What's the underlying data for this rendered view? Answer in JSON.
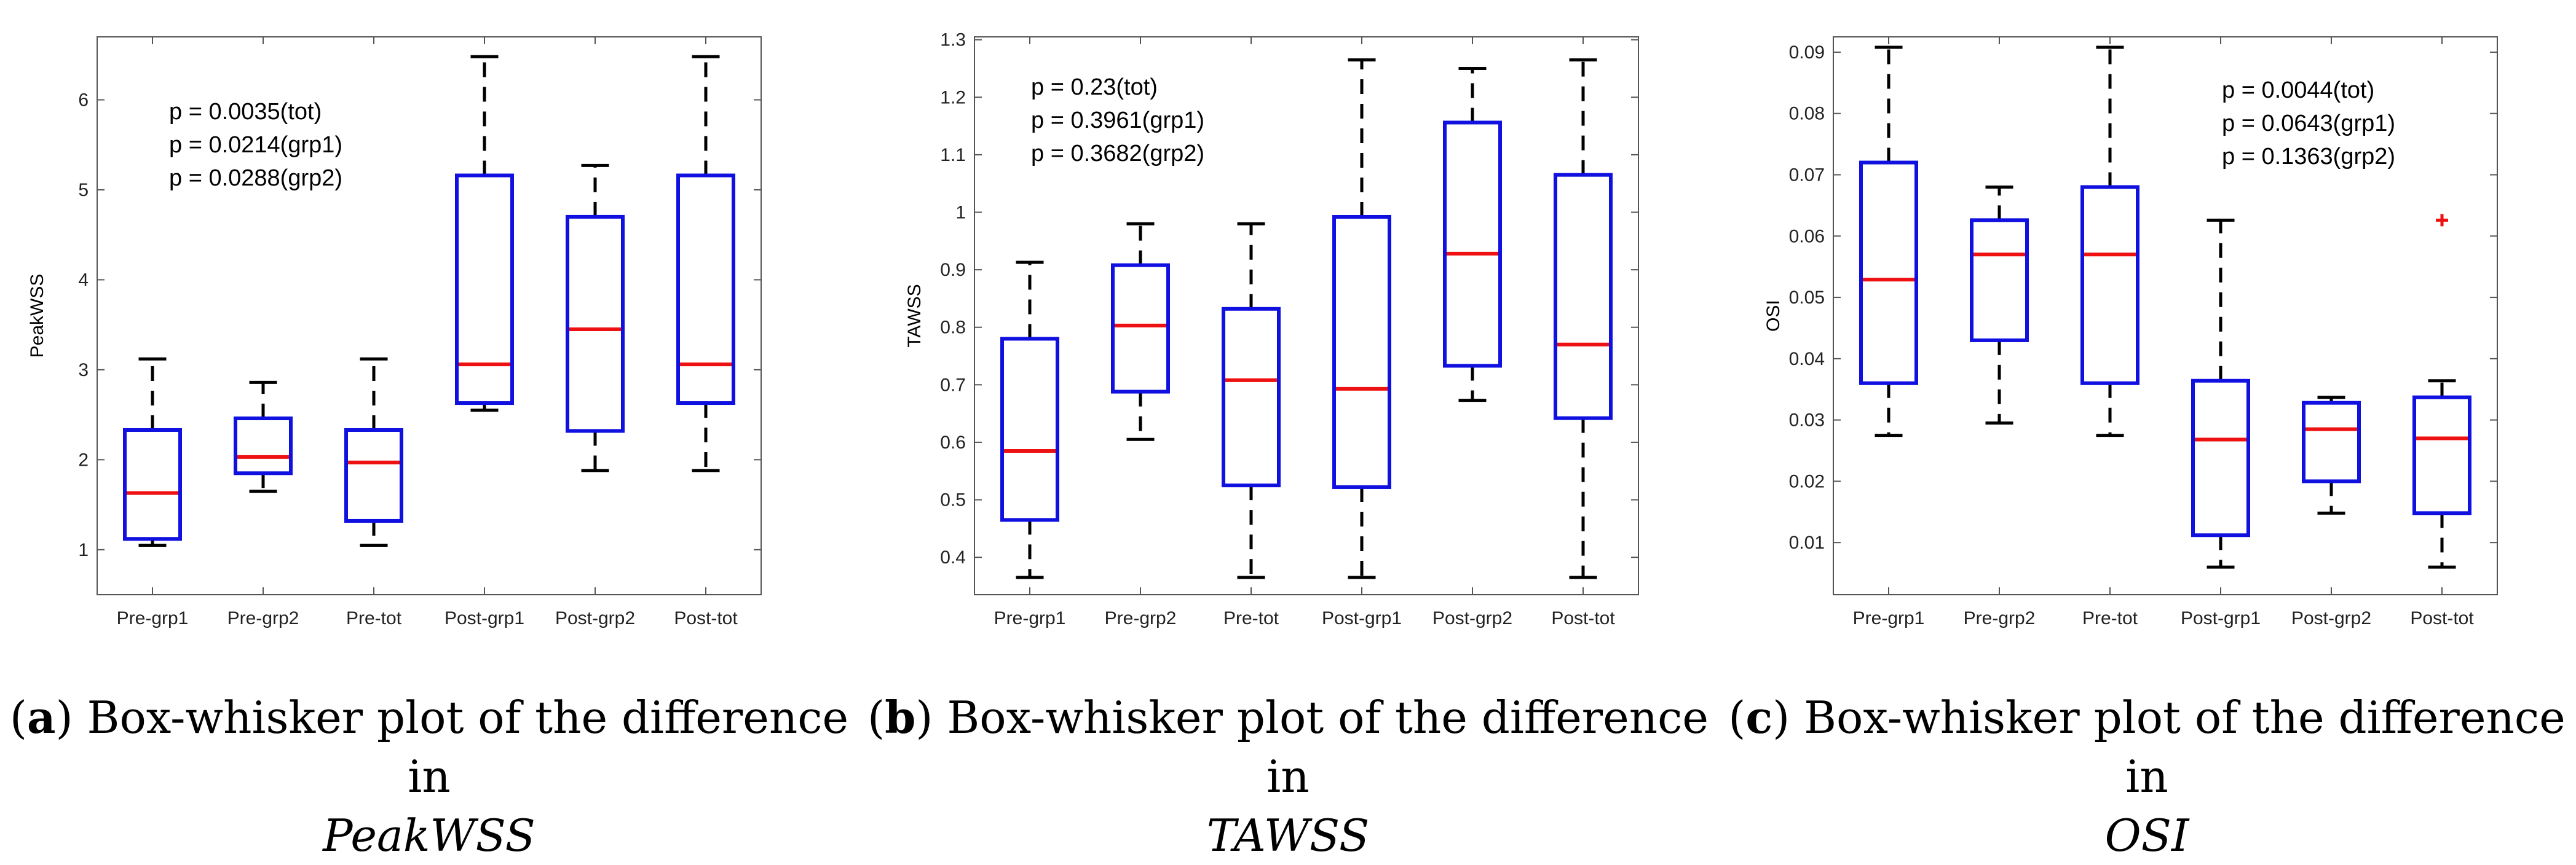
{
  "chart_data": [
    {
      "type": "box",
      "ylabel": "PeakWSS",
      "ylim": [
        0.5,
        6.7
      ],
      "yticks": [
        1,
        2,
        3,
        4,
        5,
        6
      ],
      "ytick_labels": [
        "1",
        "2",
        "3",
        "4",
        "5",
        "6"
      ],
      "categories": [
        "Pre-grp1",
        "Pre-grp2",
        "Pre-tot",
        "Post-grp1",
        "Post-grp2",
        "Post-tot"
      ],
      "boxes": [
        {
          "min": 1.05,
          "q1": 1.12,
          "median": 1.63,
          "q3": 2.33,
          "max": 3.12
        },
        {
          "min": 1.65,
          "q1": 1.85,
          "median": 2.03,
          "q3": 2.46,
          "max": 2.86
        },
        {
          "min": 1.05,
          "q1": 1.32,
          "median": 1.97,
          "q3": 2.33,
          "max": 3.12
        },
        {
          "min": 2.55,
          "q1": 2.63,
          "median": 3.06,
          "q3": 5.16,
          "max": 6.48
        },
        {
          "min": 1.88,
          "q1": 2.32,
          "median": 3.45,
          "q3": 4.7,
          "max": 5.27
        },
        {
          "min": 1.88,
          "q1": 2.63,
          "median": 3.06,
          "q3": 5.16,
          "max": 6.48
        }
      ],
      "outliers": [],
      "annotations": [
        "p = 0.0035(tot)",
        "p = 0.0214(grp1)",
        "p = 0.0288(grp2)"
      ],
      "caption": {
        "tag": "a",
        "text": " Box-whisker plot of the difference in",
        "variable": "PeakWSS"
      }
    },
    {
      "type": "box",
      "ylabel": "TAWSS",
      "ylim": [
        0.335,
        1.305
      ],
      "yticks": [
        0.4,
        0.5,
        0.6,
        0.7,
        0.8,
        0.9,
        1.0,
        1.1,
        1.2,
        1.3
      ],
      "ytick_labels": [
        "0.4",
        "0.5",
        "0.6",
        "0.7",
        "0.8",
        "0.9",
        "1",
        "1.1",
        "1.2",
        "1.3"
      ],
      "categories": [
        "Pre-grp1",
        "Pre-grp2",
        "Pre-tot",
        "Post-grp1",
        "Post-grp2",
        "Post-tot"
      ],
      "boxes": [
        {
          "min": 0.365,
          "q1": 0.465,
          "median": 0.585,
          "q3": 0.78,
          "max": 0.913
        },
        {
          "min": 0.605,
          "q1": 0.688,
          "median": 0.803,
          "q3": 0.908,
          "max": 0.98
        },
        {
          "min": 0.365,
          "q1": 0.525,
          "median": 0.708,
          "q3": 0.832,
          "max": 0.98
        },
        {
          "min": 0.365,
          "q1": 0.522,
          "median": 0.693,
          "q3": 0.992,
          "max": 1.265
        },
        {
          "min": 0.673,
          "q1": 0.733,
          "median": 0.928,
          "q3": 1.156,
          "max": 1.25
        },
        {
          "min": 0.365,
          "q1": 0.642,
          "median": 0.77,
          "q3": 1.065,
          "max": 1.265
        }
      ],
      "outliers": [],
      "annotations": [
        "p = 0.23(tot)",
        "p = 0.3961(grp1)",
        "p = 0.3682(grp2)"
      ],
      "caption": {
        "tag": "b",
        "text": " Box-whisker plot of the difference in",
        "variable": "TAWSS"
      }
    },
    {
      "type": "box",
      "ylabel": "OSI",
      "ylim": [
        0.0015,
        0.0925
      ],
      "yticks": [
        0.01,
        0.02,
        0.03,
        0.04,
        0.05,
        0.06,
        0.07,
        0.08,
        0.09
      ],
      "ytick_labels": [
        "0.01",
        "0.02",
        "0.03",
        "0.04",
        "0.05",
        "0.06",
        "0.07",
        "0.08",
        "0.09"
      ],
      "categories": [
        "Pre-grp1",
        "Pre-grp2",
        "Pre-tot",
        "Post-grp1",
        "Post-grp2",
        "Post-tot"
      ],
      "boxes": [
        {
          "min": 0.0275,
          "q1": 0.036,
          "median": 0.0529,
          "q3": 0.072,
          "max": 0.0908
        },
        {
          "min": 0.0295,
          "q1": 0.043,
          "median": 0.057,
          "q3": 0.0626,
          "max": 0.068
        },
        {
          "min": 0.0275,
          "q1": 0.036,
          "median": 0.057,
          "q3": 0.068,
          "max": 0.0908
        },
        {
          "min": 0.006,
          "q1": 0.0112,
          "median": 0.0268,
          "q3": 0.0364,
          "max": 0.0626
        },
        {
          "min": 0.0148,
          "q1": 0.02,
          "median": 0.0285,
          "q3": 0.0328,
          "max": 0.0337
        },
        {
          "min": 0.006,
          "q1": 0.0148,
          "median": 0.027,
          "q3": 0.0337,
          "max": 0.0364
        }
      ],
      "outliers": [
        {
          "category_index": 5,
          "value": 0.0626
        }
      ],
      "annotations": [
        "p = 0.0044(tot)",
        "p = 0.0643(grp1)",
        "p = 0.1363(grp2)"
      ],
      "caption": {
        "tag": "c",
        "text": " Box-whisker plot of the difference in",
        "variable": "OSI"
      }
    }
  ],
  "colors": {
    "box": "#1010e0",
    "median": "#ee1111",
    "whisker": "#000000",
    "outlier": "#ee1111",
    "axis": "#555555"
  }
}
